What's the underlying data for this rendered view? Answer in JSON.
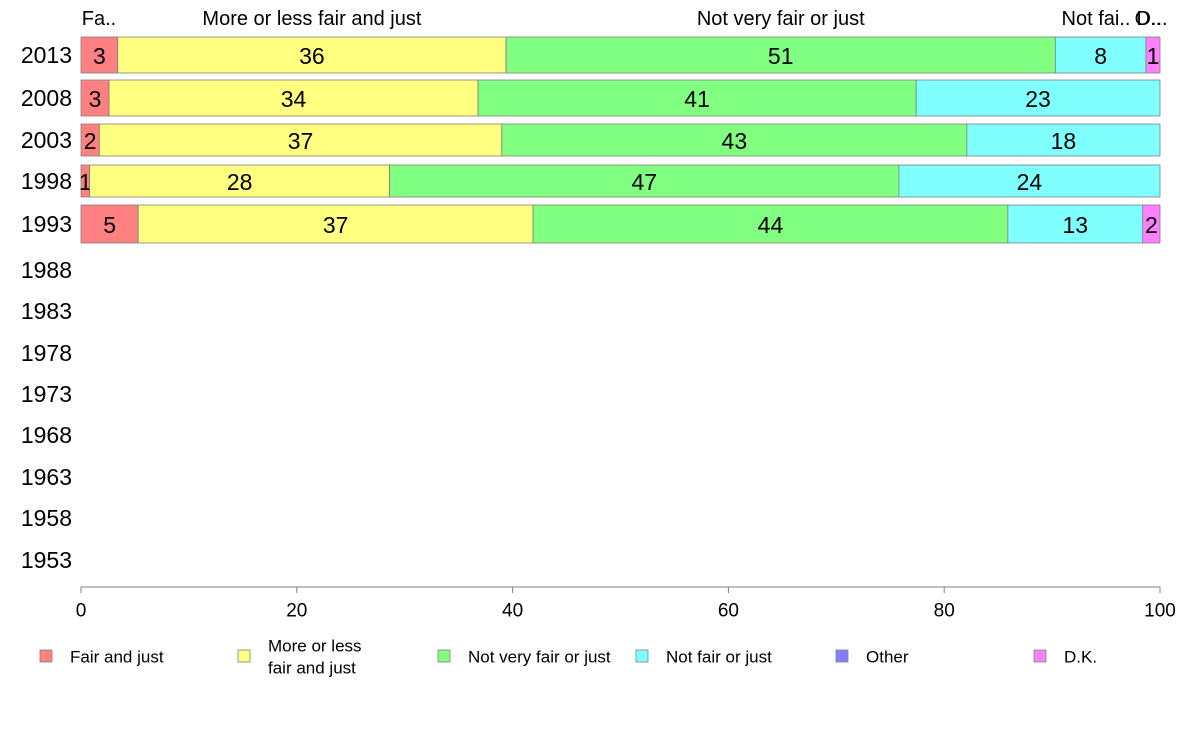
{
  "chart_data": {
    "type": "bar",
    "orientation": "horizontal",
    "stacked": true,
    "categories": [
      "2013",
      "2008",
      "2003",
      "1998",
      "1993",
      "1988",
      "1983",
      "1978",
      "1973",
      "1968",
      "1963",
      "1958",
      "1953"
    ],
    "series": [
      {
        "name": "Fair and just",
        "color": "#ff8080",
        "values": [
          3.4,
          2.6,
          1.7,
          0.8,
          5.3,
          null,
          null,
          null,
          null,
          null,
          null,
          null,
          null
        ],
        "labels": [
          "3",
          "3",
          "2",
          "1",
          "5"
        ]
      },
      {
        "name": "More or less fair and just",
        "color": "#ffff80",
        "values": [
          36,
          34.2,
          37.3,
          27.8,
          36.6,
          null,
          null,
          null,
          null,
          null,
          null,
          null,
          null
        ],
        "labels": [
          "36",
          "34",
          "37",
          "28",
          "37"
        ]
      },
      {
        "name": "Not very fair or just",
        "color": "#80ff80",
        "values": [
          50.9,
          40.6,
          43.1,
          47.2,
          44,
          null,
          null,
          null,
          null,
          null,
          null,
          null,
          null
        ],
        "labels": [
          "51",
          "41",
          "43",
          "47",
          "44"
        ]
      },
      {
        "name": "Not fair or just",
        "color": "#80ffff",
        "values": [
          8.4,
          22.6,
          17.9,
          24.2,
          12.5,
          null,
          null,
          null,
          null,
          null,
          null,
          null,
          null
        ],
        "labels": [
          "8",
          "23",
          "18",
          "24",
          "13"
        ]
      },
      {
        "name": "Other",
        "color": "#8080ff",
        "values": [
          0,
          0,
          0,
          0,
          0,
          null,
          null,
          null,
          null,
          null,
          null,
          null,
          null
        ],
        "labels": [
          "",
          "",
          "",
          "",
          ""
        ]
      },
      {
        "name": "D.K.",
        "color": "#ff80ff",
        "values": [
          1.3,
          0,
          0,
          0,
          1.6,
          null,
          null,
          null,
          null,
          null,
          null,
          null,
          null
        ],
        "labels": [
          "1",
          "",
          "",
          "",
          "2"
        ]
      }
    ],
    "headers": [
      "Fa..",
      "More or less fair and just",
      "Not very fair or just",
      "Not fai..",
      "O..",
      "D..."
    ],
    "legend_labels": [
      "Fair and just",
      "More or less\nfair and just",
      "Not very fair or just",
      "Not fair or just",
      "Other",
      "D.K."
    ],
    "xlim": [
      0,
      100
    ],
    "xticks": [
      0,
      20,
      40,
      60,
      80,
      100
    ],
    "legend_position": "bottom",
    "grid": false
  }
}
